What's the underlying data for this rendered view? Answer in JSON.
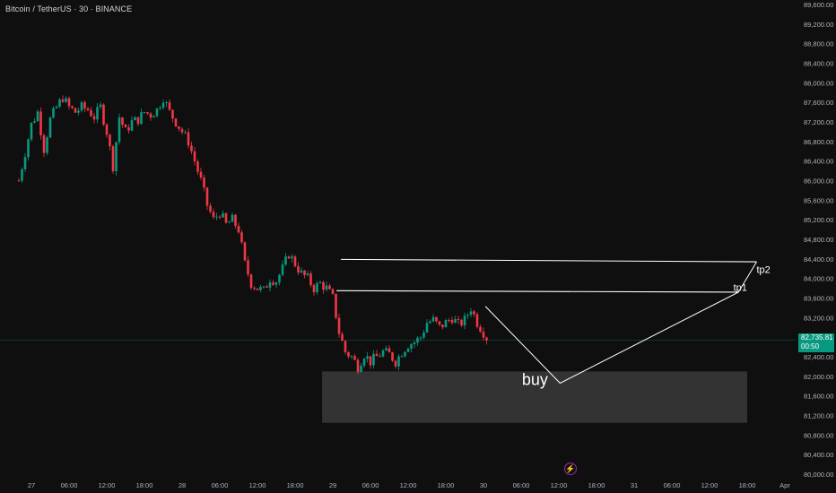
{
  "header": {
    "title": "Bitcoin / TetherUS · 30 · BINANCE"
  },
  "colors": {
    "up": "#089981",
    "down": "#f23645",
    "background": "#0f0f0f",
    "annotation": "#ffffff",
    "zone": "#3a3a3a",
    "text": "#b2b5be"
  },
  "price_tag": {
    "price": "82,735.81",
    "countdown": "00:50"
  },
  "icons": {
    "lightning": "lightning-icon"
  },
  "chart_data": {
    "type": "candlestick",
    "symbol": "Bitcoin / TetherUS",
    "interval": "30",
    "exchange": "BINANCE",
    "ylim": [
      80000,
      89600
    ],
    "y_ticks": [
      "89,600.00",
      "89,200.00",
      "88,800.00",
      "88,400.00",
      "88,000.00",
      "87,600.00",
      "87,200.00",
      "86,800.00",
      "86,400.00",
      "86,000.00",
      "85,600.00",
      "85,200.00",
      "84,800.00",
      "84,400.00",
      "84,000.00",
      "83,600.00",
      "83,200.00",
      "82,800.00",
      "82,400.00",
      "82,000.00",
      "81,600.00",
      "81,200.00",
      "80,800.00",
      "80,400.00",
      "80,000.00"
    ],
    "x_ticks": [
      "27",
      "06:00",
      "12:00",
      "18:00",
      "28",
      "06:00",
      "12:00",
      "18:00",
      "29",
      "06:00",
      "12:00",
      "18:00",
      "30",
      "06:00",
      "12:00",
      "18:00",
      "31",
      "06:00",
      "12:00",
      "18:00",
      "Apr"
    ],
    "x_tick_hours": [
      0,
      6,
      12,
      18,
      24,
      30,
      36,
      42,
      48,
      54,
      60,
      66,
      72,
      78,
      84,
      90,
      96,
      102,
      108,
      114,
      120
    ],
    "x_start_hours": -2,
    "current_price": 82735.81,
    "price_path": [
      [
        -2,
        86000
      ],
      [
        0,
        87150
      ],
      [
        1,
        87400
      ],
      [
        2,
        86650
      ],
      [
        3,
        87250
      ],
      [
        4,
        87500
      ],
      [
        5,
        87700
      ],
      [
        6,
        87500
      ],
      [
        7,
        87400
      ],
      [
        8,
        87500
      ],
      [
        9,
        87450
      ],
      [
        10,
        87300
      ],
      [
        11,
        87500
      ],
      [
        12,
        87000
      ],
      [
        13,
        86300
      ],
      [
        14,
        87300
      ],
      [
        15,
        87000
      ],
      [
        16,
        87200
      ],
      [
        17,
        87250
      ],
      [
        18,
        87400
      ],
      [
        19,
        87350
      ],
      [
        20,
        87450
      ],
      [
        21,
        87700
      ],
      [
        22,
        87400
      ],
      [
        23,
        87200
      ],
      [
        24,
        87000
      ],
      [
        25,
        86800
      ],
      [
        26,
        86400
      ],
      [
        27,
        86000
      ],
      [
        28,
        85500
      ],
      [
        29,
        85200
      ],
      [
        30,
        85350
      ],
      [
        31,
        85100
      ],
      [
        32,
        85200
      ],
      [
        33,
        85000
      ],
      [
        34,
        84300
      ],
      [
        35,
        83900
      ],
      [
        36,
        83800
      ],
      [
        37,
        83750
      ],
      [
        38,
        84000
      ],
      [
        39,
        83950
      ],
      [
        40,
        84200
      ],
      [
        41,
        84500
      ],
      [
        42,
        84300
      ],
      [
        43,
        84100
      ],
      [
        44,
        84000
      ],
      [
        45,
        83800
      ],
      [
        46,
        83900
      ],
      [
        47,
        83800
      ],
      [
        48,
        83600
      ],
      [
        49,
        82900
      ],
      [
        50,
        82500
      ],
      [
        51,
        82400
      ],
      [
        52,
        82200
      ],
      [
        53,
        82450
      ],
      [
        54,
        82300
      ],
      [
        55,
        82400
      ],
      [
        56,
        82500
      ],
      [
        57,
        82450
      ],
      [
        58,
        82300
      ],
      [
        59,
        82500
      ],
      [
        60,
        82650
      ],
      [
        61,
        82700
      ],
      [
        62,
        82800
      ],
      [
        63,
        83100
      ],
      [
        64,
        83150
      ],
      [
        65,
        83000
      ],
      [
        66,
        83100
      ],
      [
        67,
        83200
      ],
      [
        68,
        83050
      ],
      [
        69,
        83150
      ],
      [
        70,
        83400
      ],
      [
        71,
        83100
      ],
      [
        72,
        82900
      ],
      [
        72.5,
        82735.81
      ]
    ],
    "annotations": {
      "lines": [
        {
          "from": [
            48.6,
            83750
          ],
          "to": [
            112.6,
            83720
          ]
        },
        {
          "from": [
            49.3,
            84390
          ],
          "to": [
            115.5,
            84340
          ]
        }
      ],
      "projection": [
        [
          72.3,
          83430
        ],
        [
          84.2,
          81860
        ],
        [
          112.6,
          83720
        ],
        [
          115.5,
          84340
        ]
      ],
      "buy_zone": {
        "x": [
          46.3,
          114
        ],
        "y": [
          81050,
          82100
        ]
      },
      "labels": [
        {
          "text": "tp1",
          "x": 111.8,
          "y": 83750
        },
        {
          "text": "tp2",
          "x": 115.5,
          "y": 84110
        },
        {
          "text": "buy",
          "x": 80.2,
          "y": 81820
        }
      ]
    }
  }
}
